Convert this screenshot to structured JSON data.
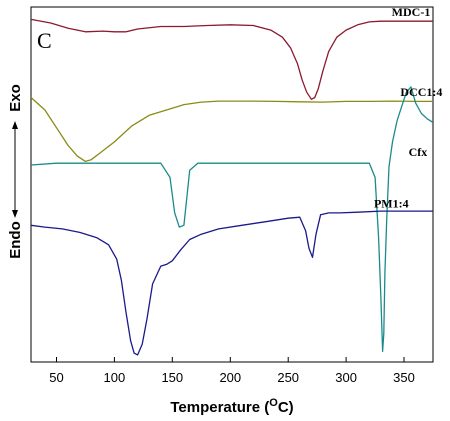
{
  "chart_data": {
    "type": "line",
    "panel_label": "C",
    "xlabel": "Temperature (°C)",
    "xlabel_main": "Temperature (",
    "xlabel_sup": "O",
    "xlabel_unit": "C)",
    "ylabel_top": "Exo",
    "ylabel_bottom": "Endo",
    "xlim": [
      28,
      375
    ],
    "ylim": [
      0,
      100
    ],
    "xticks": [
      50,
      100,
      150,
      200,
      250,
      300,
      350
    ],
    "xtick_labels": [
      "50",
      "100",
      "150",
      "200",
      "250",
      "300",
      "350"
    ],
    "series": [
      {
        "name": "MDC-1",
        "color": "#8b1a2e",
        "x": [
          28,
          45,
          60,
          75,
          90,
          100,
          110,
          120,
          140,
          160,
          180,
          200,
          220,
          235,
          245,
          252,
          258,
          262,
          266,
          270,
          273,
          276,
          280,
          285,
          292,
          300,
          310,
          320,
          330,
          340,
          350,
          360,
          375
        ],
        "y": [
          96.5,
          95.5,
          94.0,
          93.0,
          93.2,
          93.0,
          93.0,
          93.8,
          94.5,
          94.5,
          94.8,
          95.0,
          94.8,
          93.5,
          91.5,
          88.5,
          84.0,
          79.5,
          76.0,
          74.0,
          74.5,
          77.0,
          82.0,
          87.5,
          91.5,
          93.5,
          95.0,
          95.8,
          96.0,
          96.0,
          96.0,
          96.0,
          96.0
        ]
      },
      {
        "name": "DCC1:4",
        "color": "#8b8b14",
        "x": [
          28,
          40,
          50,
          60,
          68,
          75,
          80,
          88,
          100,
          115,
          130,
          145,
          160,
          175,
          190,
          205,
          220,
          240,
          260,
          280,
          300,
          320,
          340,
          360,
          375
        ],
        "y": [
          74.5,
          71.0,
          66.0,
          61.0,
          58.0,
          56.5,
          57.0,
          59.0,
          62.0,
          66.5,
          69.5,
          71.0,
          72.5,
          73.2,
          73.5,
          73.5,
          73.5,
          73.4,
          73.3,
          73.2,
          73.4,
          73.4,
          73.5,
          73.4,
          73.4
        ]
      },
      {
        "name": "Cfx",
        "color": "#1a8b8b",
        "x": [
          28,
          50,
          80,
          100,
          120,
          140,
          148,
          152,
          156,
          160,
          165,
          172,
          180,
          200,
          230,
          260,
          290,
          310,
          320,
          325,
          328,
          330,
          331.5,
          332.5,
          333.5,
          335,
          337,
          340,
          344,
          348,
          352,
          356,
          360,
          365,
          370,
          375
        ],
        "y": [
          55.5,
          56.0,
          56.0,
          56.0,
          56.0,
          56.0,
          52.0,
          42.0,
          38.0,
          38.5,
          54.0,
          56.0,
          56.0,
          56.0,
          56.0,
          56.0,
          56.0,
          56.0,
          56.0,
          52.0,
          35.0,
          18.0,
          3.0,
          8.0,
          25.0,
          40.0,
          55.0,
          62.0,
          68.0,
          72.0,
          76.0,
          77.5,
          73.0,
          70.0,
          68.5,
          67.5
        ]
      },
      {
        "name": "PM1:4",
        "color": "#1a1a8b",
        "x": [
          28,
          40,
          55,
          70,
          85,
          95,
          102,
          106,
          110,
          114,
          117,
          120,
          124,
          128,
          133,
          140,
          145,
          150,
          157,
          165,
          175,
          190,
          210,
          230,
          250,
          260,
          265,
          268,
          271,
          274,
          278,
          285,
          295,
          310,
          330,
          345,
          360,
          375
        ],
        "y": [
          38.5,
          38.0,
          37.5,
          36.5,
          35.0,
          33.0,
          29.0,
          23.0,
          14.0,
          6.0,
          2.5,
          2.0,
          5.0,
          12.0,
          22.0,
          27.0,
          27.5,
          28.5,
          31.5,
          34.5,
          36.0,
          37.5,
          38.5,
          39.5,
          40.5,
          40.8,
          37.0,
          32.0,
          29.5,
          36.0,
          41.5,
          42.0,
          42.0,
          42.2,
          42.5,
          42.5,
          42.5,
          42.5
        ]
      }
    ],
    "series_labels": [
      {
        "text": "MDC-1",
        "x": 356,
        "y": 97.5,
        "color": "#000000"
      },
      {
        "text": "DCC1:4",
        "x": 365,
        "y": 75.0,
        "color": "#000000"
      },
      {
        "text": "Cfx",
        "x": 362,
        "y": 58.0,
        "color": "#000000"
      },
      {
        "text": "PM1:4",
        "x": 339,
        "y": 43.5,
        "color": "#000000"
      }
    ]
  }
}
